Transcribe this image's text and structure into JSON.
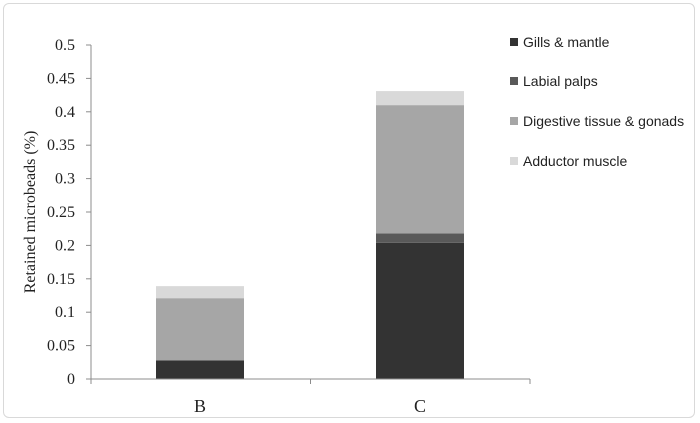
{
  "chart_data": {
    "type": "bar",
    "stacked": true,
    "categories": [
      "B",
      "C"
    ],
    "series": [
      {
        "name": "Gills & mantle",
        "values": [
          0.028,
          0.204
        ],
        "color": "#333333"
      },
      {
        "name": "Labial palps",
        "values": [
          0.0,
          0.014
        ],
        "color": "#595959"
      },
      {
        "name": "Digestive tissue & gonads",
        "values": [
          0.093,
          0.192
        ],
        "color": "#a6a6a6"
      },
      {
        "name": "Adductor muscle",
        "values": [
          0.018,
          0.021
        ],
        "color": "#d9d9d9"
      }
    ],
    "ylabel": "Retained microbeads (%)",
    "xlabel": "",
    "ylim": [
      0,
      0.5
    ],
    "yticks": [
      "0",
      "0.05",
      "0.1",
      "0.15",
      "0.2",
      "0.25",
      "0.3",
      "0.35",
      "0.4",
      "0.45",
      "0.5"
    ],
    "legend_position": "right",
    "grid": false
  }
}
